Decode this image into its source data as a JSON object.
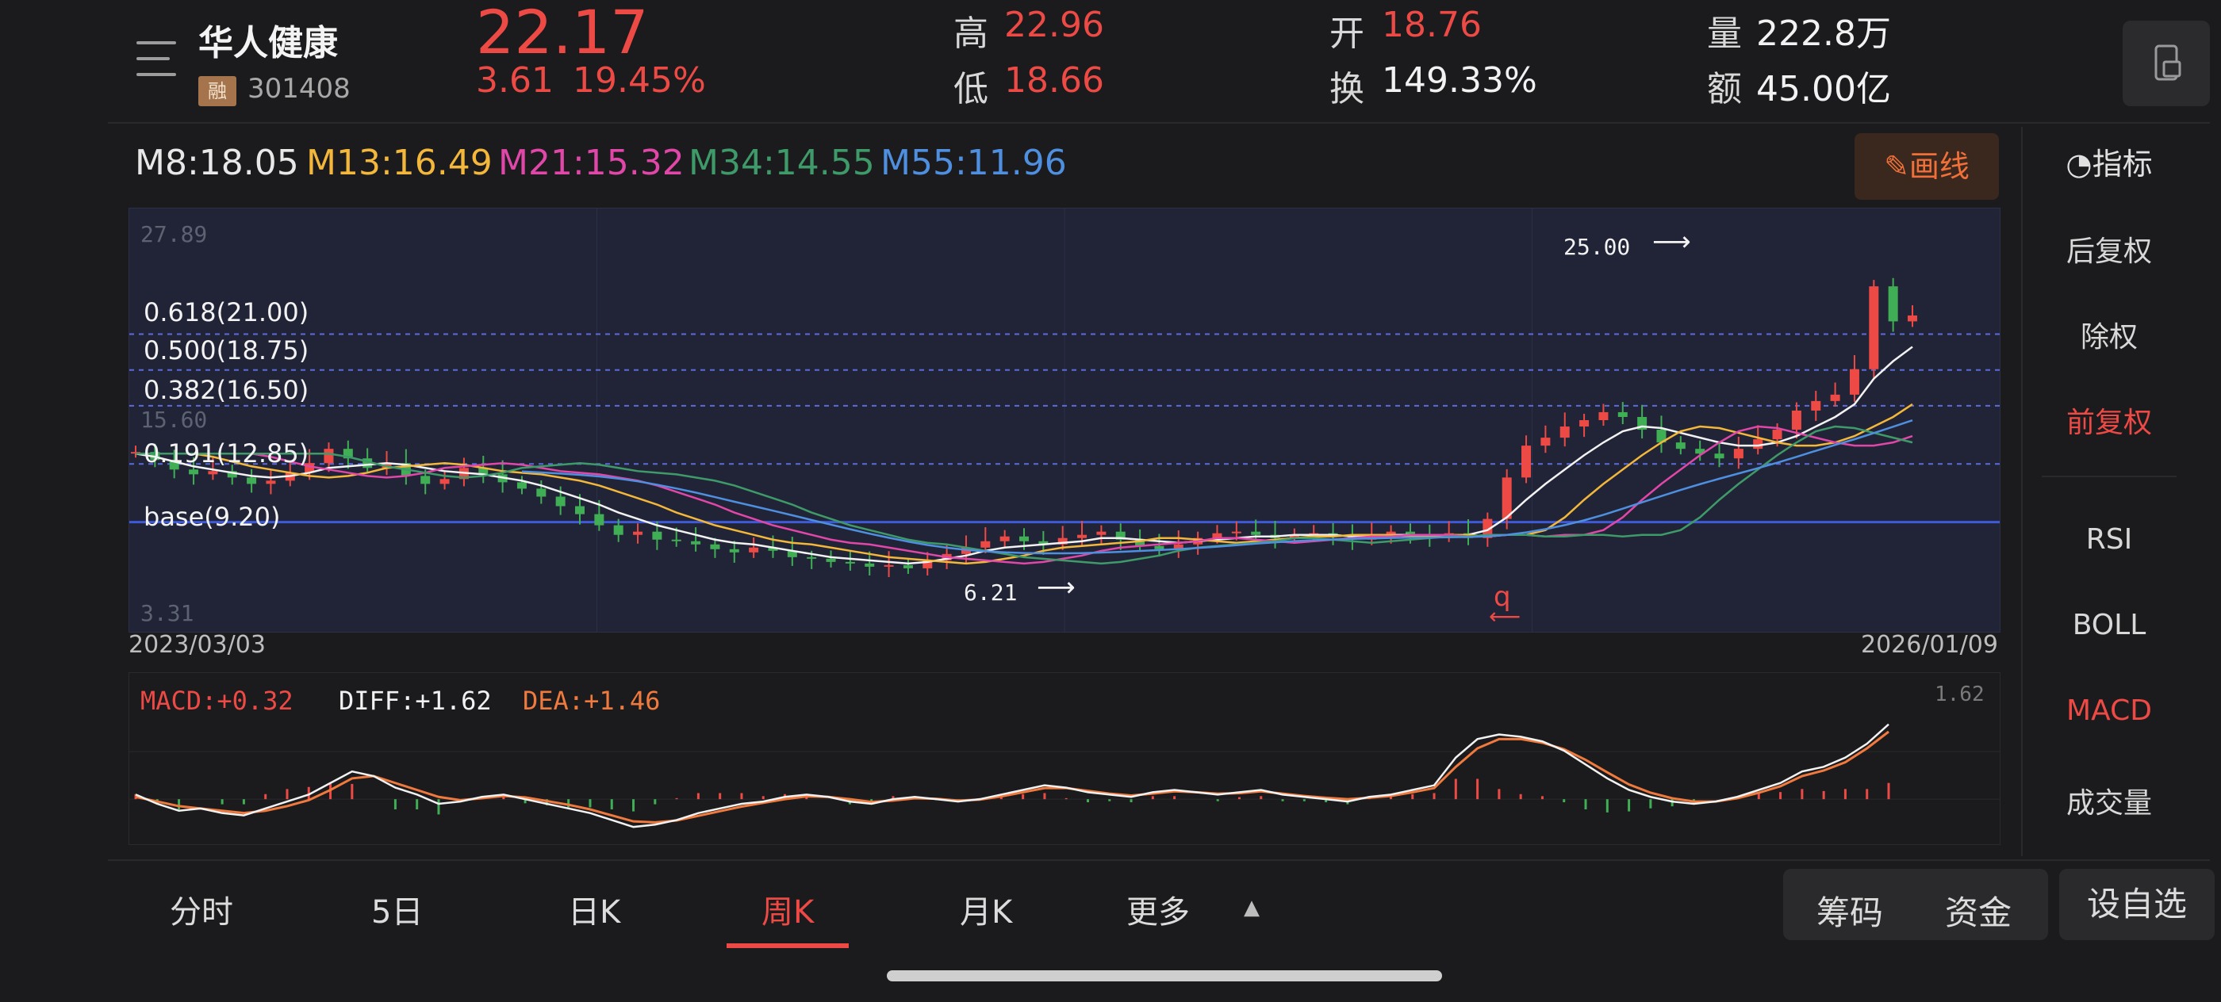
{
  "header": {
    "stock_name": "华人健康",
    "margin_badge": "融",
    "stock_code": "301408",
    "last_price": "22.17",
    "change_abs": "3.61",
    "change_pct": "19.45%",
    "quotes": [
      {
        "label": "高",
        "value": "22.96",
        "color": "#ee4a45"
      },
      {
        "label": "低",
        "value": "18.66",
        "color": "#ee4a45"
      },
      {
        "label": "开",
        "value": "18.76",
        "color": "#ee4a45"
      },
      {
        "label": "换",
        "value": "149.33%",
        "color": "#f2f2f2"
      },
      {
        "label": "量",
        "value": "222.8万",
        "color": "#f2f2f2"
      },
      {
        "label": "额",
        "value": "45.00亿",
        "color": "#f2f2f2"
      }
    ]
  },
  "ma_line": [
    {
      "text": "M8:18.05",
      "color": "#f2f2f2"
    },
    {
      "text": "M13:16.49",
      "color": "#f3b73b"
    },
    {
      "text": "M21:15.32",
      "color": "#e047a8"
    },
    {
      "text": "M34:14.55",
      "color": "#3f9a6a"
    },
    {
      "text": "M55:11.96",
      "color": "#4f8fe0"
    }
  ],
  "toolbar": {
    "draw_label": "画线",
    "indicator_label": "指标"
  },
  "side_menu": {
    "adjust": [
      "后复权",
      "除权",
      "前复权"
    ],
    "indicators": [
      "RSI",
      "BOLL",
      "MACD",
      "成交量"
    ],
    "active_adjust": "前复权",
    "active_indicator": "MACD"
  },
  "chart_data": {
    "type": "candlestick",
    "y_top_label": "27.89",
    "y_mid_label": "15.60",
    "y_bottom_label": "3.31",
    "ylim": [
      3.31,
      27.89
    ],
    "x_start_label": "2023/03/03",
    "x_end_label": "2026/01/09",
    "fib_levels": [
      {
        "label": "0.618(21.00)",
        "value": 21.0
      },
      {
        "label": "0.500(18.75)",
        "value": 18.75
      },
      {
        "label": "0.382(16.50)",
        "value": 16.5
      },
      {
        "label": "0.191(12.85)",
        "value": 12.85
      },
      {
        "label": "base(9.20)",
        "value": 9.2
      }
    ],
    "annotation_high": "25.00",
    "annotation_low": "6.21",
    "marker_label": "q",
    "close_series": [
      13.6,
      13.1,
      12.5,
      12.2,
      12.4,
      12.0,
      11.6,
      11.8,
      12.3,
      12.9,
      13.8,
      13.2,
      12.6,
      12.9,
      12.1,
      11.6,
      11.9,
      12.6,
      12.2,
      11.7,
      11.3,
      10.8,
      10.2,
      9.7,
      9.0,
      8.4,
      8.6,
      8.1,
      8.0,
      7.8,
      7.5,
      7.3,
      7.6,
      7.4,
      7.0,
      6.9,
      6.7,
      6.6,
      6.4,
      6.5,
      6.3,
      6.8,
      7.2,
      7.6,
      8.0,
      8.3,
      8.0,
      7.8,
      8.2,
      8.4,
      8.6,
      8.1,
      7.7,
      7.5,
      7.8,
      8.2,
      8.5,
      8.6,
      8.4,
      8.2,
      8.4,
      8.5,
      8.3,
      8.1,
      8.3,
      8.6,
      8.4,
      8.3,
      8.5,
      8.2,
      9.4,
      12.0,
      14.0,
      14.5,
      15.2,
      15.6,
      16.1,
      15.8,
      15.0,
      14.2,
      13.8,
      13.5,
      13.2,
      13.8,
      14.4,
      15.0,
      16.2,
      16.8,
      17.2,
      18.8,
      24.0,
      21.8,
      22.17
    ],
    "ma8": [
      13.5,
      13.3,
      13.0,
      12.7,
      12.5,
      12.3,
      12.1,
      12.0,
      12.1,
      12.3,
      12.6,
      12.7,
      12.8,
      12.9,
      12.8,
      12.6,
      12.4,
      12.3,
      12.2,
      12.0,
      11.8,
      11.5,
      11.1,
      10.7,
      10.3,
      9.8,
      9.4,
      9.0,
      8.7,
      8.4,
      8.1,
      7.9,
      7.8,
      7.6,
      7.4,
      7.2,
      7.0,
      6.9,
      6.8,
      6.7,
      6.6,
      6.7,
      6.9,
      7.1,
      7.4,
      7.6,
      7.7,
      7.8,
      7.9,
      8.0,
      8.2,
      8.2,
      8.1,
      8.0,
      7.9,
      8.0,
      8.1,
      8.2,
      8.3,
      8.3,
      8.4,
      8.4,
      8.4,
      8.3,
      8.3,
      8.4,
      8.4,
      8.3,
      8.4,
      8.4,
      8.7,
      9.5,
      10.6,
      11.6,
      12.5,
      13.4,
      14.2,
      14.9,
      15.2,
      15.1,
      14.8,
      14.5,
      14.2,
      14.0,
      14.0,
      14.2,
      14.6,
      15.2,
      15.8,
      16.6,
      18.2,
      19.3,
      20.2
    ]
  },
  "macd": {
    "macd_label": "MACD:+0.32",
    "diff_label": "DIFF:+1.62",
    "dea_label": "DEA:+1.46",
    "top_value": "1.62",
    "diff_series": [
      0.1,
      -0.1,
      -0.25,
      -0.2,
      -0.3,
      -0.35,
      -0.2,
      -0.05,
      0.1,
      0.35,
      0.6,
      0.5,
      0.25,
      0.1,
      -0.1,
      -0.05,
      0.05,
      0.1,
      0.0,
      -0.1,
      -0.2,
      -0.3,
      -0.45,
      -0.6,
      -0.55,
      -0.45,
      -0.3,
      -0.2,
      -0.1,
      -0.05,
      0.05,
      0.1,
      0.05,
      -0.05,
      -0.1,
      0.0,
      0.05,
      0.0,
      -0.05,
      0.0,
      0.1,
      0.2,
      0.3,
      0.25,
      0.15,
      0.1,
      0.05,
      0.15,
      0.2,
      0.15,
      0.1,
      0.15,
      0.2,
      0.1,
      0.05,
      0.0,
      -0.05,
      0.05,
      0.1,
      0.2,
      0.3,
      0.9,
      1.3,
      1.4,
      1.35,
      1.25,
      1.05,
      0.75,
      0.45,
      0.2,
      0.05,
      -0.05,
      -0.1,
      -0.05,
      0.05,
      0.2,
      0.35,
      0.6,
      0.7,
      0.9,
      1.2,
      1.62
    ],
    "dea_series": [
      0.05,
      -0.05,
      -0.15,
      -0.2,
      -0.25,
      -0.3,
      -0.25,
      -0.15,
      -0.02,
      0.2,
      0.45,
      0.5,
      0.35,
      0.2,
      0.05,
      -0.02,
      0.02,
      0.07,
      0.04,
      -0.04,
      -0.12,
      -0.22,
      -0.35,
      -0.48,
      -0.5,
      -0.46,
      -0.36,
      -0.26,
      -0.16,
      -0.08,
      0.0,
      0.06,
      0.05,
      0.0,
      -0.06,
      -0.03,
      0.02,
      0.01,
      -0.03,
      -0.01,
      0.06,
      0.15,
      0.24,
      0.24,
      0.18,
      0.12,
      0.08,
      0.12,
      0.17,
      0.15,
      0.12,
      0.13,
      0.17,
      0.12,
      0.07,
      0.03,
      0.0,
      0.03,
      0.07,
      0.15,
      0.24,
      0.7,
      1.1,
      1.3,
      1.3,
      1.22,
      1.08,
      0.85,
      0.58,
      0.32,
      0.14,
      0.02,
      -0.05,
      -0.05,
      0.02,
      0.14,
      0.28,
      0.5,
      0.62,
      0.8,
      1.1,
      1.46
    ]
  },
  "tabs": [
    "分时",
    "5日",
    "日K",
    "周K",
    "月K",
    "更多"
  ],
  "active_tab": "周K",
  "bottom_buttons": {
    "chips": "筹码",
    "funds": "资金",
    "add_watch": "设自选"
  },
  "colors": {
    "up": "#ee4a45",
    "down": "#3fae55",
    "accent": "#ee4a45",
    "fib": "#5b6bdc",
    "base": "#3e5ad8"
  }
}
